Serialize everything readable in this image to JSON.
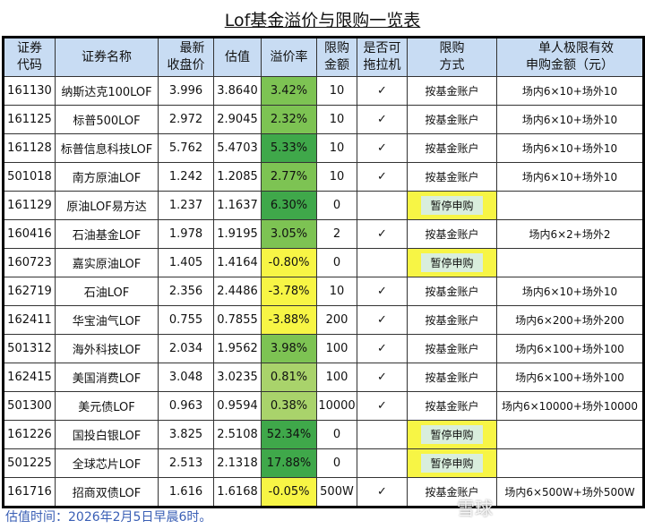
{
  "title": "Lof基金溢价与限购一览表",
  "headers": [
    "证券代码",
    "证券名称",
    "最新收盘价",
    "估值",
    "溢价率",
    "限购金额",
    "是否可拖拉机",
    "限购方式",
    "单人极限有效申购金额（元）"
  ],
  "header_lines": [
    [
      "证券",
      "代码"
    ],
    [
      "证券名称"
    ],
    [
      "最新",
      "收盘价"
    ],
    [
      "估值"
    ],
    [
      "溢价率"
    ],
    [
      "限购",
      "金额"
    ],
    [
      "是否可",
      "拖拉机"
    ],
    [
      "限购",
      "方式"
    ],
    [
      "单人极限有效",
      "申购金额（元）"
    ]
  ],
  "rows": [
    [
      "161130",
      "纳斯达克100LOF",
      "3.996",
      "3.8640",
      "3.42%",
      "10",
      "✓",
      "按基金账户",
      "场内6×10+场外10"
    ],
    [
      "161125",
      "标普500LOF",
      "2.972",
      "2.9045",
      "2.32%",
      "10",
      "✓",
      "按基金账户",
      "场内6×10+场外10"
    ],
    [
      "161128",
      "标普信息科技LOF",
      "5.762",
      "5.4703",
      "5.33%",
      "10",
      "✓",
      "按基金账户",
      "场内6×10+场外10"
    ],
    [
      "501018",
      "南方原油LOF",
      "1.242",
      "1.2085",
      "2.77%",
      "10",
      "✓",
      "按基金账户",
      "场内6×10+场外10"
    ],
    [
      "161129",
      "原油LOF易方达",
      "1.237",
      "1.1637",
      "6.30%",
      "0",
      "",
      "暂停申购",
      ""
    ],
    [
      "160416",
      "石油基金LOF",
      "1.978",
      "1.9195",
      "3.05%",
      "2",
      "✓",
      "按基金账户",
      "场内6×2+场外2"
    ],
    [
      "160723",
      "嘉实原油LOF",
      "1.405",
      "1.4164",
      "-0.80%",
      "0",
      "",
      "暂停申购",
      ""
    ],
    [
      "162719",
      "石油LOF",
      "2.356",
      "2.4486",
      "-3.78%",
      "10",
      "✓",
      "按基金账户",
      "场内6×10+场外10"
    ],
    [
      "162411",
      "华宝油气LOF",
      "0.755",
      "0.7855",
      "-3.88%",
      "200",
      "✓",
      "按基金账户",
      "场内6×200+场外200"
    ],
    [
      "501312",
      "海外科技LOF",
      "2.034",
      "1.9562",
      "3.98%",
      "100",
      "✓",
      "按基金账户",
      "场内6×100+场外100"
    ],
    [
      "162415",
      "美国消费LOF",
      "3.048",
      "3.0235",
      "0.81%",
      "100",
      "✓",
      "按基金账户",
      "场内6×100+场外100"
    ],
    [
      "501300",
      "美元债LOF",
      "0.963",
      "0.9594",
      "0.38%",
      "10000",
      "✓",
      "按基金账户",
      "场内6×10000+场外10000"
    ],
    [
      "161226",
      "国投白银LOF",
      "3.825",
      "2.5108",
      "52.34%",
      "0",
      "",
      "暂停申购",
      ""
    ],
    [
      "501225",
      "全球芯片LOF",
      "2.513",
      "2.1318",
      "17.88%",
      "0",
      "",
      "暂停申购",
      ""
    ],
    [
      "161716",
      "招商双债LOF",
      "1.616",
      "1.6168",
      "-0.05%",
      "500W",
      "✓",
      "按基金账户",
      "场内6×500W+场外500W"
    ]
  ],
  "premium_colors": {
    "high": "#3fa84a",
    "mid": "#7dc353",
    "low": "#a9d36b",
    "negative": "#f7f545"
  },
  "note": "估值时间：2026年2月5日早晨6时。",
  "watermark": "雪球"
}
